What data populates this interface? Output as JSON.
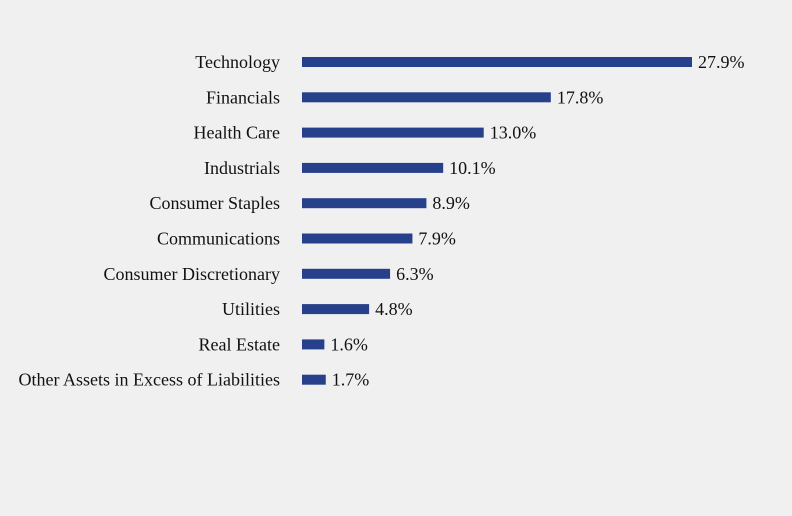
{
  "chart_data": {
    "type": "bar",
    "orientation": "horizontal",
    "categories": [
      "Technology",
      "Financials",
      "Health Care",
      "Industrials",
      "Consumer Staples",
      "Communications",
      "Consumer Discretionary",
      "Utilities",
      "Real Estate",
      "Other Assets in Excess of Liabilities"
    ],
    "values": [
      27.9,
      17.8,
      13.0,
      10.1,
      8.9,
      7.9,
      6.3,
      4.8,
      1.6,
      1.7
    ],
    "value_labels": [
      "27.9%",
      "17.8%",
      "13.0%",
      "10.1%",
      "8.9%",
      "7.9%",
      "6.3%",
      "4.8%",
      "1.6%",
      "1.7%"
    ],
    "title": "",
    "xlabel": "",
    "ylabel": "",
    "xlim": [
      0,
      27.9
    ],
    "grid": false,
    "legend": "none",
    "bar_color": "#27408b",
    "background_color": "#f0f0f0"
  }
}
